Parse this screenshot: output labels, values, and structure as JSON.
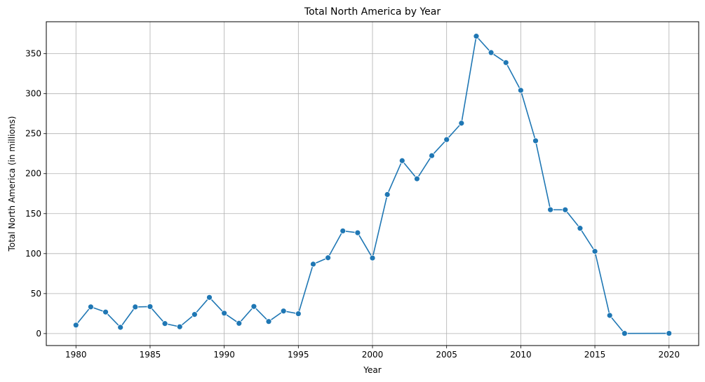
{
  "chart_data": {
    "type": "line",
    "title": "Total North America by Year",
    "xlabel": "Year",
    "ylabel": "Total North America (in millions)",
    "xlim": [
      1978,
      2022
    ],
    "ylim": [
      -15,
      390
    ],
    "xticks": [
      1980,
      1985,
      1990,
      1995,
      2000,
      2005,
      2010,
      2015,
      2020
    ],
    "yticks": [
      0,
      50,
      100,
      150,
      200,
      250,
      300,
      350
    ],
    "grid": true,
    "color": "#1f77b4",
    "series": [
      {
        "x": [
          1980,
          1981,
          1982,
          1983,
          1984,
          1985,
          1986,
          1987,
          1988,
          1989,
          1990,
          1991,
          1992,
          1993,
          1994,
          1995,
          1996,
          1997,
          1998,
          1999,
          2000,
          2001,
          2002,
          2003,
          2004,
          2005,
          2006,
          2007,
          2008,
          2009,
          2010,
          2011,
          2012,
          2013,
          2014,
          2015,
          2016,
          2017,
          2020
        ],
        "y": [
          10.6,
          33.4,
          26.9,
          7.8,
          33.3,
          33.7,
          12.5,
          8.5,
          23.9,
          45.2,
          25.5,
          12.8,
          33.9,
          15.1,
          28.2,
          24.8,
          86.8,
          94.8,
          128.4,
          126.1,
          94.5,
          173.9,
          216.2,
          193.6,
          222.5,
          242.6,
          263.1,
          371.9,
          351.4,
          338.9,
          304.2,
          241.1,
          154.9,
          154.8,
          131.7,
          102.8,
          22.7,
          0.2,
          0.3
        ]
      }
    ]
  }
}
